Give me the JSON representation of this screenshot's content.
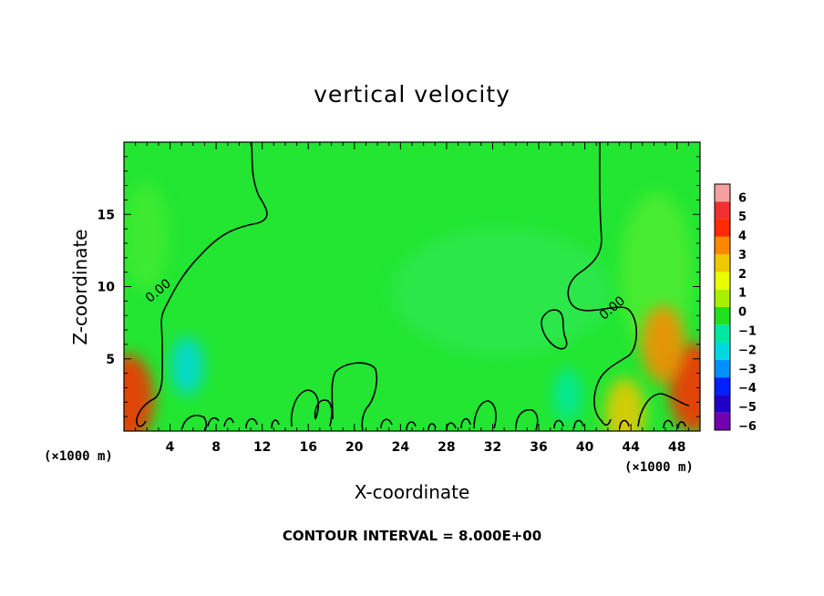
{
  "chart_data": {
    "type": "heatmap",
    "title": "vertical velocity",
    "xlabel": "X-coordinate",
    "ylabel": "Z-coordinate",
    "x_unit": "(×1000 m)",
    "z_unit": "(×1000 m)",
    "xlim": [
      0,
      50
    ],
    "ylim": [
      0,
      20
    ],
    "x_ticks": [
      4,
      8,
      12,
      16,
      20,
      24,
      28,
      32,
      36,
      40,
      44,
      48
    ],
    "y_ticks": [
      5,
      10,
      15
    ],
    "colorbar": {
      "levels": [
        6,
        5,
        4,
        3,
        2,
        1,
        0,
        -1,
        -2,
        -3,
        -4,
        -5,
        -6
      ],
      "labels": [
        "6",
        "5",
        "4",
        "3",
        "2",
        "1",
        "0",
        "−1",
        "−2",
        "−3",
        "−4",
        "−5",
        "−6"
      ],
      "colors": [
        "#f4a0a0",
        "#f03030",
        "#ff2a00",
        "#ff8800",
        "#f0c800",
        "#e8ff00",
        "#a8f000",
        "#20e020",
        "#00e8a0",
        "#00d8e0",
        "#0090ff",
        "#0020ff",
        "#2000c8",
        "#7000b0"
      ]
    },
    "background_color": "#22e632",
    "contour_label": "0.00",
    "contour_labels_at": [
      [
        3.2,
        9.5
      ],
      [
        42.6,
        8.3
      ]
    ],
    "hotspots": [
      {
        "x": 0.4,
        "z": 2.2,
        "value": 4.5
      },
      {
        "x": 49.5,
        "z": 3.0,
        "value": 4.5
      },
      {
        "x": 46.8,
        "z": 6.0,
        "value": 3.5
      },
      {
        "x": 43.5,
        "z": 1.2,
        "value": 3.0
      },
      {
        "x": 5.5,
        "z": 4.5,
        "value": -2.0
      },
      {
        "x": 38.5,
        "z": 2.5,
        "value": -1.5
      }
    ],
    "footer": "CONTOUR INTERVAL = 8.000E+00"
  }
}
